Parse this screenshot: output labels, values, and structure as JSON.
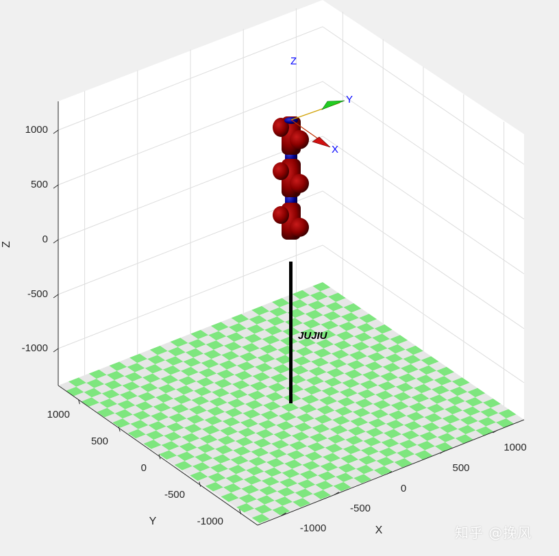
{
  "axes": {
    "z_label": "Z",
    "x_label": "X",
    "y_label": "Y",
    "z_ticks": [
      "1000",
      "500",
      "0",
      "-500",
      "-1000"
    ],
    "x_ticks": [
      "-1000",
      "-500",
      "0",
      "500",
      "1000"
    ],
    "y_ticks": [
      "1000",
      "500",
      "0",
      "-500",
      "-1000"
    ]
  },
  "tool_frame": {
    "x_label": "X",
    "y_label": "Y",
    "z_label": "Z"
  },
  "robot": {
    "name": "JUJIU",
    "link_color": "#8b0000",
    "joint_color": "#00008b"
  },
  "floor": {
    "color_a": "#7ee67e",
    "color_b": "#e6e6e6"
  },
  "watermark": "知乎 @挽风"
}
